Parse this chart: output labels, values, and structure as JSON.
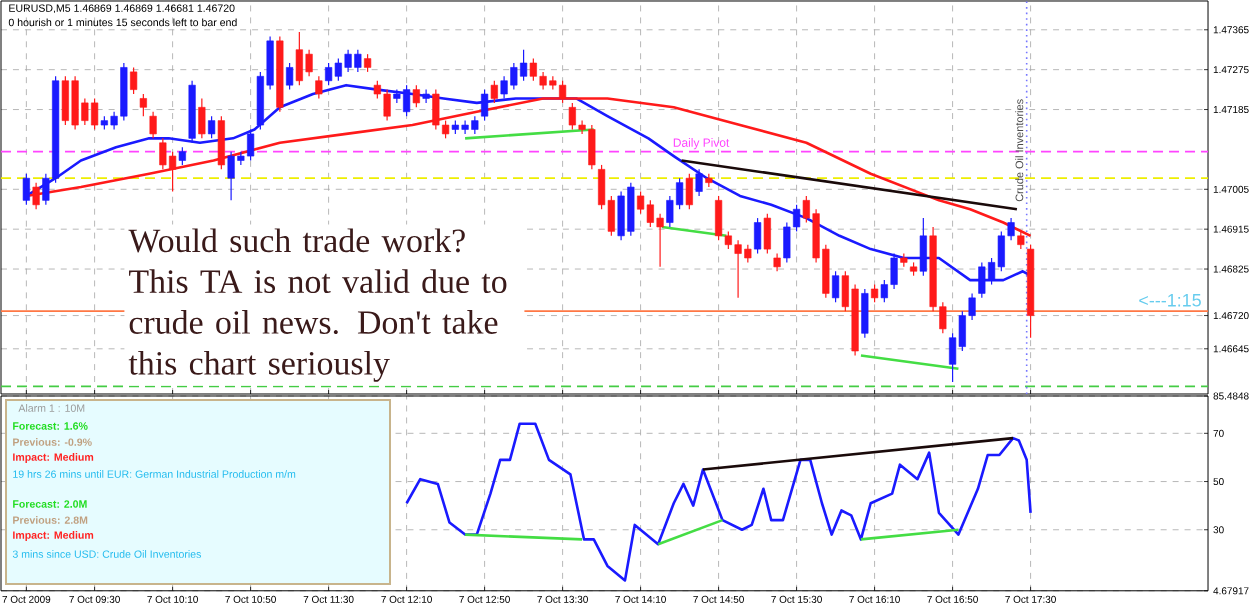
{
  "chart_data": [
    {
      "type": "candlestick",
      "title": "EURUSD,M5  1.46869 1.46869 1.46681 1.46720",
      "subtitle": "0 hourish or 1 minutes 15 seconds left to bar end",
      "x": [
        "2009-10-07T08:55",
        "2009-10-07T09:00",
        "2009-10-07T09:05",
        "2009-10-07T09:10",
        "2009-10-07T09:15",
        "2009-10-07T09:20",
        "2009-10-07T09:25",
        "2009-10-07T09:30",
        "2009-10-07T09:35",
        "2009-10-07T09:40",
        "2009-10-07T09:45",
        "2009-10-07T09:50",
        "2009-10-07T09:55",
        "2009-10-07T10:00",
        "2009-10-07T10:05",
        "2009-10-07T10:10",
        "2009-10-07T10:15",
        "2009-10-07T10:20",
        "2009-10-07T10:25",
        "2009-10-07T10:30",
        "2009-10-07T10:35",
        "2009-10-07T10:40",
        "2009-10-07T10:45",
        "2009-10-07T10:50",
        "2009-10-07T10:55",
        "2009-10-07T11:00",
        "2009-10-07T11:05",
        "2009-10-07T11:10",
        "2009-10-07T11:15",
        "2009-10-07T11:20",
        "2009-10-07T11:25",
        "2009-10-07T11:30",
        "2009-10-07T11:35",
        "2009-10-07T11:40",
        "2009-10-07T11:45",
        "2009-10-07T11:50",
        "2009-10-07T11:55",
        "2009-10-07T12:00",
        "2009-10-07T12:05",
        "2009-10-07T12:10",
        "2009-10-07T12:15",
        "2009-10-07T12:20",
        "2009-10-07T12:25",
        "2009-10-07T12:30",
        "2009-10-07T12:35",
        "2009-10-07T12:40",
        "2009-10-07T12:45",
        "2009-10-07T12:50",
        "2009-10-07T12:55",
        "2009-10-07T13:00",
        "2009-10-07T13:05",
        "2009-10-07T13:10",
        "2009-10-07T13:15",
        "2009-10-07T13:20",
        "2009-10-07T13:25",
        "2009-10-07T13:30",
        "2009-10-07T13:35",
        "2009-10-07T13:40",
        "2009-10-07T13:45",
        "2009-10-07T13:50",
        "2009-10-07T13:55",
        "2009-10-07T14:00",
        "2009-10-07T14:05",
        "2009-10-07T14:10",
        "2009-10-07T14:15",
        "2009-10-07T14:20",
        "2009-10-07T14:25",
        "2009-10-07T14:30",
        "2009-10-07T14:35",
        "2009-10-07T14:40",
        "2009-10-07T14:45",
        "2009-10-07T14:50",
        "2009-10-07T14:55",
        "2009-10-07T15:00",
        "2009-10-07T15:05",
        "2009-10-07T15:10",
        "2009-10-07T15:15",
        "2009-10-07T15:20",
        "2009-10-07T15:25",
        "2009-10-07T15:30",
        "2009-10-07T15:35",
        "2009-10-07T15:40",
        "2009-10-07T15:45",
        "2009-10-07T15:50",
        "2009-10-07T15:55",
        "2009-10-07T16:00",
        "2009-10-07T16:05",
        "2009-10-07T16:10",
        "2009-10-07T16:15",
        "2009-10-07T16:20",
        "2009-10-07T16:25",
        "2009-10-07T16:30",
        "2009-10-07T16:35",
        "2009-10-07T16:40",
        "2009-10-07T16:45",
        "2009-10-07T16:50",
        "2009-10-07T16:55",
        "2009-10-07T17:00",
        "2009-10-07T17:05",
        "2009-10-07T17:10",
        "2009-10-07T17:15",
        "2009-10-07T17:20",
        "2009-10-07T17:25",
        "2009-10-07T17:30"
      ],
      "ohlc": [
        [
          1.4698,
          1.4704,
          1.4697,
          1.4703
        ],
        [
          1.4701,
          1.4702,
          1.4696,
          1.4697
        ],
        [
          1.4698,
          1.4704,
          1.4697,
          1.4703
        ],
        [
          1.4703,
          1.4726,
          1.4702,
          1.4725
        ],
        [
          1.4725,
          1.4726,
          1.4715,
          1.4716
        ],
        [
          1.4725,
          1.4726,
          1.4714,
          1.4715
        ],
        [
          1.472,
          1.4721,
          1.4715,
          1.4716
        ],
        [
          1.472,
          1.4721,
          1.4714,
          1.4715
        ],
        [
          1.4715,
          1.4717,
          1.4714,
          1.4716
        ],
        [
          1.4715,
          1.4718,
          1.4714,
          1.4717
        ],
        [
          1.4717,
          1.4729,
          1.4716,
          1.4728
        ],
        [
          1.4727,
          1.4728,
          1.4722,
          1.4723
        ],
        [
          1.4721,
          1.4722,
          1.4717,
          1.4719
        ],
        [
          1.4717,
          1.4718,
          1.4712,
          1.4713
        ],
        [
          1.4711,
          1.4712,
          1.4705,
          1.4706
        ],
        [
          1.4708,
          1.4709,
          1.47,
          1.4705
        ],
        [
          1.4707,
          1.471,
          1.4706,
          1.4709
        ],
        [
          1.4712,
          1.4725,
          1.4711,
          1.4724
        ],
        [
          1.4719,
          1.4721,
          1.4712,
          1.4713
        ],
        [
          1.4713,
          1.4717,
          1.4712,
          1.4716
        ],
        [
          1.4716,
          1.4717,
          1.4705,
          1.4706
        ],
        [
          1.4703,
          1.4709,
          1.4698,
          1.4708
        ],
        [
          1.4707,
          1.4709,
          1.4706,
          1.4708
        ],
        [
          1.4708,
          1.4714,
          1.4707,
          1.4713
        ],
        [
          1.4715,
          1.4727,
          1.4714,
          1.4726
        ],
        [
          1.4724,
          1.4735,
          1.4723,
          1.4734
        ],
        [
          1.4734,
          1.4735,
          1.4718,
          1.4719
        ],
        [
          1.4724,
          1.4729,
          1.4723,
          1.4728
        ],
        [
          1.4732,
          1.4736,
          1.4724,
          1.4725
        ],
        [
          1.4731,
          1.4732,
          1.4726,
          1.4727
        ],
        [
          1.4725,
          1.4726,
          1.4721,
          1.4722
        ],
        [
          1.4725,
          1.4729,
          1.4724,
          1.4728
        ],
        [
          1.4726,
          1.473,
          1.4725,
          1.4729
        ],
        [
          1.4728,
          1.4732,
          1.4727,
          1.4731
        ],
        [
          1.4728,
          1.4732,
          1.4727,
          1.4731
        ],
        [
          1.473,
          1.4731,
          1.4727,
          1.4728
        ],
        [
          1.4724,
          1.4725,
          1.4721,
          1.4722
        ],
        [
          1.4722,
          1.4723,
          1.4716,
          1.4717
        ],
        [
          1.4721,
          1.4723,
          1.472,
          1.4722
        ],
        [
          1.4718,
          1.4724,
          1.4717,
          1.4723
        ],
        [
          1.4723,
          1.4724,
          1.4719,
          1.472
        ],
        [
          1.4721,
          1.4723,
          1.472,
          1.4722
        ],
        [
          1.4722,
          1.4723,
          1.4714,
          1.4715
        ],
        [
          1.4715,
          1.4716,
          1.4712,
          1.4713
        ],
        [
          1.4714,
          1.4716,
          1.4713,
          1.4715
        ],
        [
          1.4714,
          1.4716,
          1.4713,
          1.4715
        ],
        [
          1.4714,
          1.4717,
          1.4713,
          1.4716
        ],
        [
          1.4717,
          1.4723,
          1.4716,
          1.4722
        ],
        [
          1.4724,
          1.4725,
          1.472,
          1.4721
        ],
        [
          1.4722,
          1.4726,
          1.4721,
          1.4725
        ],
        [
          1.4724,
          1.4729,
          1.4723,
          1.4728
        ],
        [
          1.4726,
          1.4732,
          1.4725,
          1.4729
        ],
        [
          1.4729,
          1.473,
          1.4725,
          1.4726
        ],
        [
          1.4726,
          1.4727,
          1.4723,
          1.4724
        ],
        [
          1.4725,
          1.4726,
          1.4723,
          1.4724
        ],
        [
          1.4724,
          1.4725,
          1.472,
          1.4721
        ],
        [
          1.4719,
          1.472,
          1.4714,
          1.4715
        ],
        [
          1.4715,
          1.4716,
          1.4713,
          1.4714
        ],
        [
          1.4714,
          1.4715,
          1.4705,
          1.4706
        ],
        [
          1.4705,
          1.4706,
          1.4696,
          1.4697
        ],
        [
          1.4698,
          1.4699,
          1.469,
          1.4691
        ],
        [
          1.469,
          1.47,
          1.4689,
          1.4699
        ],
        [
          1.4691,
          1.4702,
          1.469,
          1.4701
        ],
        [
          1.4699,
          1.47,
          1.4695,
          1.4696
        ],
        [
          1.4697,
          1.4698,
          1.4692,
          1.4693
        ],
        [
          1.4694,
          1.4695,
          1.4683,
          1.4692
        ],
        [
          1.4693,
          1.4699,
          1.4692,
          1.4698
        ],
        [
          1.4697,
          1.4703,
          1.4696,
          1.4702
        ],
        [
          1.4703,
          1.4704,
          1.4696,
          1.4697
        ],
        [
          1.47,
          1.4705,
          1.4699,
          1.4704
        ],
        [
          1.4703,
          1.4704,
          1.4701,
          1.4702
        ],
        [
          1.4698,
          1.4699,
          1.4689,
          1.469
        ],
        [
          1.469,
          1.4691,
          1.4687,
          1.4688
        ],
        [
          1.4688,
          1.4689,
          1.4676,
          1.4686
        ],
        [
          1.4687,
          1.4688,
          1.4684,
          1.4685
        ],
        [
          1.4687,
          1.4694,
          1.4686,
          1.4693
        ],
        [
          1.4694,
          1.4695,
          1.4686,
          1.4687
        ],
        [
          1.4685,
          1.4686,
          1.4682,
          1.4683
        ],
        [
          1.4685,
          1.4693,
          1.4684,
          1.4692
        ],
        [
          1.4692,
          1.4697,
          1.4691,
          1.4696
        ],
        [
          1.4698,
          1.4699,
          1.4693,
          1.4694
        ],
        [
          1.4695,
          1.4696,
          1.4684,
          1.4685
        ],
        [
          1.4687,
          1.4688,
          1.4676,
          1.4677
        ],
        [
          1.4676,
          1.4682,
          1.4675,
          1.4681
        ],
        [
          1.4681,
          1.4682,
          1.4673,
          1.4674
        ],
        [
          1.4678,
          1.4679,
          1.4663,
          1.4664
        ],
        [
          1.4668,
          1.4678,
          1.4667,
          1.4677
        ],
        [
          1.4678,
          1.4679,
          1.4675,
          1.4676
        ],
        [
          1.4676,
          1.468,
          1.4675,
          1.4679
        ],
        [
          1.4679,
          1.4686,
          1.4678,
          1.4685
        ],
        [
          1.4685,
          1.4686,
          1.4683,
          1.4684
        ],
        [
          1.4683,
          1.4684,
          1.4681,
          1.4682
        ],
        [
          1.4682,
          1.4694,
          1.4681,
          1.469
        ],
        [
          1.469,
          1.4692,
          1.4673,
          1.4674
        ],
        [
          1.4674,
          1.4675,
          1.4668,
          1.4669
        ],
        [
          1.4661,
          1.4668,
          1.4657,
          1.4667
        ],
        [
          1.4665,
          1.4673,
          1.4664,
          1.4672
        ],
        [
          1.4672,
          1.4677,
          1.4671,
          1.4676
        ],
        [
          1.4677,
          1.4684,
          1.4676,
          1.4683
        ],
        [
          1.468,
          1.4685,
          1.4679,
          1.4684
        ],
        [
          1.4683,
          1.4691,
          1.4682,
          1.469
        ],
        [
          1.469,
          1.4694,
          1.4689,
          1.4693
        ],
        [
          1.469,
          1.4691,
          1.4687,
          1.4688
        ],
        [
          1.4687,
          1.4688,
          1.4667,
          1.4672
        ]
      ],
      "colors": [
        "#1a1aff",
        "#ff1a1a",
        "#1a1aff",
        "#1a1aff",
        "#ff1a1a",
        "#ff1a1a",
        "#ff1a1a",
        "#ff1a1a",
        "#1a1aff",
        "#1a1aff",
        "#1a1aff",
        "#ff1a1a",
        "#ff1a1a",
        "#ff1a1a",
        "#ff1a1a",
        "#ff1a1a",
        "#1a1aff",
        "#1a1aff",
        "#ff1a1a",
        "#1a1aff",
        "#ff1a1a",
        "#1a1aff",
        "#1a1aff",
        "#1a1aff",
        "#1a1aff",
        "#1a1aff",
        "#ff1a1a",
        "#1a1aff",
        "#ff1a1a",
        "#ff1a1a",
        "#ff1a1a",
        "#1a1aff",
        "#1a1aff",
        "#1a1aff",
        "#1a1aff",
        "#ff1a1a",
        "#ff1a1a",
        "#ff1a1a",
        "#1a1aff",
        "#1a1aff",
        "#ff1a1a",
        "#1a1aff",
        "#ff1a1a",
        "#ff1a1a",
        "#1a1aff",
        "#1a1aff",
        "#1a1aff",
        "#1a1aff",
        "#ff1a1a",
        "#1a1aff",
        "#1a1aff",
        "#1a1aff",
        "#ff1a1a",
        "#ff1a1a",
        "#ff1a1a",
        "#ff1a1a",
        "#ff1a1a",
        "#ff1a1a",
        "#ff1a1a",
        "#ff1a1a",
        "#ff1a1a",
        "#1a1aff",
        "#1a1aff",
        "#ff1a1a",
        "#ff1a1a",
        "#ff1a1a",
        "#1a1aff",
        "#1a1aff",
        "#ff1a1a",
        "#1a1aff",
        "#ff1a1a",
        "#ff1a1a",
        "#ff1a1a",
        "#ff1a1a",
        "#ff1a1a",
        "#1a1aff",
        "#ff1a1a",
        "#ff1a1a",
        "#1a1aff",
        "#1a1aff",
        "#ff1a1a",
        "#ff1a1a",
        "#ff1a1a",
        "#1a1aff",
        "#ff1a1a",
        "#ff1a1a",
        "#1a1aff",
        "#ff1a1a",
        "#1a1aff",
        "#1a1aff",
        "#ff1a1a",
        "#ff1a1a",
        "#1a1aff",
        "#ff1a1a",
        "#ff1a1a",
        "#1a1aff",
        "#1a1aff",
        "#1a1aff",
        "#1a1aff",
        "#1a1aff",
        "#1a1aff",
        "#1a1aff",
        "#ff1a1a",
        "#ff1a1a"
      ],
      "series": [
        {
          "type": "line",
          "color": "#1a1aff",
          "x": [
            "2009-10-07T08:55",
            "2009-10-07T09:10",
            "2009-10-07T09:23",
            "2009-10-07T09:41",
            "2009-10-07T09:58",
            "2009-10-07T10:08",
            "2009-10-07T10:24",
            "2009-10-07T10:41",
            "2009-10-07T10:52",
            "2009-10-07T11:05",
            "2009-10-07T11:22",
            "2009-10-07T11:39",
            "2009-10-07T11:55",
            "2009-10-07T12:13",
            "2009-10-07T12:29",
            "2009-10-07T12:46",
            "2009-10-07T13:06",
            "2009-10-07T13:20",
            "2009-10-07T13:37",
            "2009-10-07T13:53",
            "2009-10-07T14:14",
            "2009-10-07T14:27",
            "2009-10-07T14:44",
            "2009-10-07T15:01",
            "2009-10-07T15:17",
            "2009-10-07T15:35",
            "2009-10-07T15:52",
            "2009-10-07T16:08",
            "2009-10-07T16:25",
            "2009-10-07T16:43",
            "2009-10-07T16:59",
            "2009-10-07T17:16",
            "2009-10-07T17:26",
            "2009-10-07T17:30"
          ],
          "values": [
            1.4699,
            1.4703,
            1.4707,
            1.471,
            1.4712,
            1.4712,
            1.4711,
            1.4712,
            1.4714,
            1.4719,
            1.4722,
            1.4724,
            1.4723,
            1.4722,
            1.4721,
            1.472,
            1.4721,
            1.4721,
            1.4721,
            1.4717,
            1.4712,
            1.4708,
            1.4703,
            1.4699,
            1.4697,
            1.4694,
            1.469,
            1.4687,
            1.4685,
            1.4685,
            1.468,
            1.468,
            1.4682,
            1.4681
          ]
        },
        {
          "type": "line",
          "color": "#ff1a1a",
          "x": [
            "2009-10-07T08:55",
            "2009-10-07T09:23",
            "2009-10-07T09:58",
            "2009-10-07T10:31",
            "2009-10-07T11:05",
            "2009-10-07T11:39",
            "2009-10-07T12:13",
            "2009-10-07T12:46",
            "2009-10-07T13:20",
            "2009-10-07T13:53",
            "2009-10-07T14:27",
            "2009-10-07T15:01",
            "2009-10-07T15:35",
            "2009-10-07T16:08",
            "2009-10-07T16:43",
            "2009-10-07T16:59",
            "2009-10-07T17:16",
            "2009-10-07T17:30"
          ],
          "values": [
            1.4699,
            1.4701,
            1.4704,
            1.4707,
            1.4711,
            1.4713,
            1.4715,
            1.4718,
            1.4721,
            1.4721,
            1.4719,
            1.4715,
            1.4711,
            1.4704,
            1.4698,
            1.4696,
            1.4693,
            1.469
          ]
        },
        {
          "type": "line",
          "color": "#1a0a0a",
          "x": [
            "2009-10-07T14:31",
            "2009-10-07T17:23"
          ],
          "values": [
            1.4707,
            1.4696
          ]
        },
        {
          "type": "line",
          "color": "#44dd44",
          "x": [
            "2009-10-07T14:21",
            "2009-10-07T14:54"
          ],
          "values": [
            1.4692,
            1.469
          ]
        },
        {
          "type": "line",
          "color": "#44dd44",
          "x": [
            "2009-10-07T16:03",
            "2009-10-07T16:53"
          ],
          "values": [
            1.4663,
            1.466
          ]
        },
        {
          "type": "line",
          "color": "#44dd44",
          "x": [
            "2009-10-07T12:40",
            "2009-10-07T13:46"
          ],
          "values": [
            1.4712,
            1.4714
          ]
        }
      ],
      "xlim": [
        "2009-10-07T08:42",
        "2009-10-07T19:01"
      ],
      "xticks": [
        {
          "value": "2009-10-07T08:55",
          "label": null
        },
        {
          "value": "2009-10-07T09:30",
          "label": null
        },
        {
          "value": "2009-10-07T10:10",
          "label": null
        },
        {
          "value": "2009-10-07T10:50",
          "label": null
        },
        {
          "value": "2009-10-07T11:30",
          "label": null
        },
        {
          "value": "2009-10-07T12:10",
          "label": null
        },
        {
          "value": "2009-10-07T12:50",
          "label": null
        },
        {
          "value": "2009-10-07T13:30",
          "label": null
        },
        {
          "value": "2009-10-07T14:10",
          "label": null
        },
        {
          "value": "2009-10-07T14:50",
          "label": null
        },
        {
          "value": "2009-10-07T15:30",
          "label": null
        },
        {
          "value": "2009-10-07T16:10",
          "label": null
        },
        {
          "value": "2009-10-07T16:50",
          "label": null
        },
        {
          "value": "2009-10-07T17:30",
          "label": null
        }
      ],
      "ylim": [
        1.46543,
        1.4743
      ],
      "yticks": [
        1.47365,
        1.47275,
        1.47185,
        1.47005,
        1.46915,
        1.46825,
        {
          "value": 1.4672,
          "label": "1.46720"
        },
        1.46645
      ],
      "tick_labels": "y",
      "grid": true,
      "ref_lines": [
        {
          "axis": "y",
          "value": 1.4709,
          "label": "Daily Pivot",
          "color": "#ff44ff",
          "line_style": "dashed"
        },
        {
          "axis": "y",
          "value": 1.4703,
          "color": "#eeee00",
          "line_style": "dashed"
        },
        {
          "axis": "y",
          "value": 1.4673,
          "color": "#ff7744",
          "line_style": "solid"
        },
        {
          "axis": "y",
          "value": 1.4656,
          "color": "#44cc44",
          "line_style": "dashed"
        },
        {
          "axis": "x",
          "value": "2009-10-07T17:28",
          "label": "Crude Oil Inventories",
          "color": "#7777ff",
          "line_style": "dotted"
        }
      ],
      "annotations": [
        "<---1:15",
        "Would such trade work? This TA is not valid due to crude oil news. Don't take this chart seriously"
      ]
    },
    {
      "type": "line",
      "series": [
        {
          "color": "#1a1aff",
          "x": [
            "2009-10-07T12:10",
            "2009-10-07T12:17",
            "2009-10-07T12:26",
            "2009-10-07T12:32",
            "2009-10-07T12:40",
            "2009-10-07T12:46",
            "2009-10-07T12:53",
            "2009-10-07T12:58",
            "2009-10-07T13:03",
            "2009-10-07T13:08",
            "2009-10-07T13:16",
            "2009-10-07T13:23",
            "2009-10-07T13:34",
            "2009-10-07T13:41",
            "2009-10-07T13:46",
            "2009-10-07T13:53",
            "2009-10-07T14:02",
            "2009-10-07T14:07",
            "2009-10-07T14:19",
            "2009-10-07T14:27",
            "2009-10-07T14:32",
            "2009-10-07T14:37",
            "2009-10-07T14:42",
            "2009-10-07T14:52",
            "2009-10-07T15:02",
            "2009-10-07T15:07",
            "2009-10-07T15:13",
            "2009-10-07T15:17",
            "2009-10-07T15:23",
            "2009-10-07T15:32",
            "2009-10-07T15:37",
            "2009-10-07T15:43",
            "2009-10-07T15:48",
            "2009-10-07T15:53",
            "2009-10-07T15:58",
            "2009-10-07T16:03",
            "2009-10-07T16:08",
            "2009-10-07T16:19",
            "2009-10-07T16:23",
            "2009-10-07T16:32",
            "2009-10-07T16:38",
            "2009-10-07T16:43",
            "2009-10-07T16:53",
            "2009-10-07T17:03",
            "2009-10-07T17:08",
            "2009-10-07T17:14",
            "2009-10-07T17:21",
            "2009-10-07T17:24",
            "2009-10-07T17:28",
            "2009-10-07T17:30"
          ],
          "values": [
            41,
            51,
            49,
            33,
            28,
            28,
            45,
            59,
            59,
            74,
            74,
            59,
            53,
            26,
            26,
            15,
            9,
            32,
            24,
            41,
            49,
            40,
            55,
            34,
            30,
            32,
            47,
            34,
            34,
            59,
            59,
            41,
            28,
            38,
            36,
            26,
            41,
            45,
            57,
            51,
            62,
            37,
            28,
            47,
            61,
            61,
            68,
            67,
            59,
            37
          ]
        },
        {
          "color": "#1a0a0a",
          "x": [
            "2009-10-07T14:42",
            "2009-10-07T17:21"
          ],
          "values": [
            55,
            68
          ]
        },
        {
          "color": "#44dd44",
          "x": [
            "2009-10-07T14:19",
            "2009-10-07T14:52"
          ],
          "values": [
            24,
            34
          ]
        },
        {
          "color": "#44dd44",
          "x": [
            "2009-10-07T16:03",
            "2009-10-07T16:53"
          ],
          "values": [
            26,
            30
          ]
        },
        {
          "color": "#44dd44",
          "x": [
            "2009-10-07T12:40",
            "2009-10-07T13:40"
          ],
          "values": [
            28,
            26
          ]
        }
      ],
      "xlim": [
        "2009-10-07T08:42",
        "2009-10-07T19:01"
      ],
      "xticks": [
        {
          "value": "2009-10-07T08:55",
          "label": "7 Oct 2009"
        },
        {
          "value": "2009-10-07T09:30",
          "label": "7 Oct 09:30"
        },
        {
          "value": "2009-10-07T10:10",
          "label": "7 Oct 10:10"
        },
        {
          "value": "2009-10-07T10:50",
          "label": "7 Oct 10:50"
        },
        {
          "value": "2009-10-07T11:30",
          "label": "7 Oct 11:30"
        },
        {
          "value": "2009-10-07T12:10",
          "label": "7 Oct 12:10"
        },
        {
          "value": "2009-10-07T12:50",
          "label": "7 Oct 12:50"
        },
        {
          "value": "2009-10-07T13:30",
          "label": "7 Oct 13:30"
        },
        {
          "value": "2009-10-07T14:10",
          "label": "7 Oct 14:10"
        },
        {
          "value": "2009-10-07T14:50",
          "label": "7 Oct 14:50"
        },
        {
          "value": "2009-10-07T15:30",
          "label": "7 Oct 15:30"
        },
        {
          "value": "2009-10-07T16:10",
          "label": "7 Oct 16:10"
        },
        {
          "value": "2009-10-07T16:50",
          "label": "7 Oct 16:50"
        },
        {
          "value": "2009-10-07T17:30",
          "label": "7 Oct 17:30"
        }
      ],
      "ylim": [
        4.67917,
        85.4848
      ],
      "yticks": [
        85.4848,
        70,
        50,
        30,
        4.67917
      ],
      "grid": true,
      "annotations": [
        "Alarm 1 : 10M",
        "Forecast: 1.6%",
        "Previous: -0.9%",
        "Impact: Medium",
        "19 hrs 26 mins until EUR: German Industrial Production m/m",
        "Forecast: 2.0M",
        "Previous: 2.8M",
        "Impact: Medium",
        "3 mins since USD: Crude Oil Inventories"
      ]
    }
  ]
}
